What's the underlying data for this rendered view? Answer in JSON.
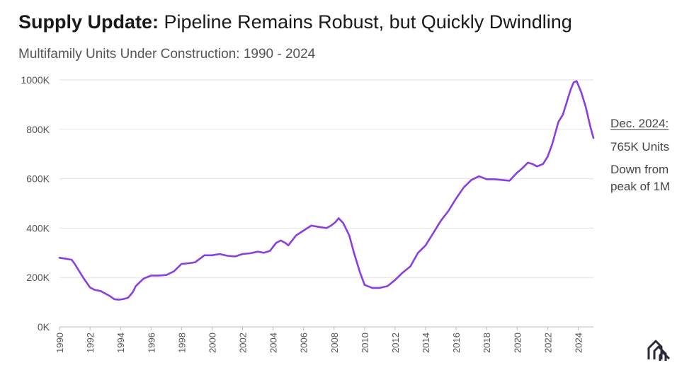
{
  "header": {
    "title_bold": "Supply Update:",
    "title_rest": " Pipeline Remains Robust, but Quickly Dwindling",
    "subtitle": "Multifamily Units Under Construction: 1990 - 2024"
  },
  "annotation": {
    "date": "Dec. 2024:",
    "units": "765K Units",
    "down_line1": "Down from",
    "down_line2": "peak of 1M"
  },
  "colors": {
    "line": "#8a3ee0",
    "grid": "#e2e2e2",
    "text": "#444444"
  },
  "chart_data": {
    "type": "line",
    "title": "Multifamily Units Under Construction: 1990 - 2024",
    "xlabel": "",
    "ylabel": "",
    "xlim": [
      1990,
      2025
    ],
    "ylim": [
      0,
      1000
    ],
    "grid": true,
    "y_ticks": [
      0,
      200,
      400,
      600,
      800,
      1000
    ],
    "y_tick_labels": [
      "0K",
      "200K",
      "400K",
      "600K",
      "800K",
      "1000K"
    ],
    "x_ticks": [
      1990,
      1992,
      1994,
      1996,
      1998,
      2000,
      2002,
      2004,
      2006,
      2008,
      2010,
      2012,
      2014,
      2016,
      2018,
      2020,
      2022,
      2024
    ],
    "x_tick_labels": [
      "1990",
      "1992",
      "1994",
      "1996",
      "1998",
      "2000",
      "2002",
      "2004",
      "2006",
      "2008",
      "2010",
      "2012",
      "2014",
      "2016",
      "2018",
      "2020",
      "2022",
      "2024"
    ],
    "series": [
      {
        "name": "",
        "x": [
          1990.0,
          1990.5,
          1990.8,
          1991.0,
          1991.3,
          1991.6,
          1992.0,
          1992.3,
          1992.7,
          1993.0,
          1993.3,
          1993.6,
          1993.9,
          1994.2,
          1994.5,
          1994.8,
          1995.0,
          1995.5,
          1996.0,
          1996.5,
          1997.0,
          1997.5,
          1998.0,
          1998.5,
          1998.9,
          1999.5,
          2000.0,
          2000.5,
          2001.0,
          2001.5,
          2002.0,
          2002.5,
          2003.0,
          2003.4,
          2003.8,
          2004.2,
          2004.5,
          2004.8,
          2005.0,
          2005.5,
          2006.0,
          2006.5,
          2007.0,
          2007.5,
          2007.8,
          2008.1,
          2008.3,
          2008.6,
          2009.0,
          2009.3,
          2009.7,
          2010.0,
          2010.5,
          2011.0,
          2011.5,
          2012.0,
          2012.5,
          2013.0,
          2013.5,
          2014.0,
          2014.5,
          2015.0,
          2015.5,
          2016.0,
          2016.5,
          2017.0,
          2017.5,
          2018.0,
          2018.5,
          2019.0,
          2019.5,
          2020.0,
          2020.3,
          2020.7,
          2021.0,
          2021.3,
          2021.7,
          2022.0,
          2022.3,
          2022.7,
          2023.0,
          2023.3,
          2023.5,
          2023.7,
          2023.9,
          2024.2,
          2024.5,
          2024.8,
          2025.0
        ],
        "y": [
          280,
          275,
          272,
          255,
          225,
          195,
          160,
          150,
          145,
          135,
          125,
          112,
          110,
          113,
          118,
          140,
          165,
          195,
          208,
          208,
          210,
          225,
          255,
          258,
          262,
          290,
          290,
          295,
          288,
          285,
          295,
          298,
          305,
          300,
          308,
          340,
          350,
          340,
          330,
          370,
          390,
          410,
          405,
          400,
          410,
          425,
          440,
          420,
          370,
          300,
          220,
          170,
          158,
          158,
          165,
          190,
          220,
          245,
          300,
          330,
          380,
          430,
          470,
          520,
          565,
          595,
          610,
          598,
          598,
          595,
          592,
          625,
          640,
          665,
          660,
          650,
          660,
          690,
          740,
          830,
          860,
          920,
          960,
          990,
          995,
          950,
          890,
          810,
          765
        ]
      }
    ]
  }
}
